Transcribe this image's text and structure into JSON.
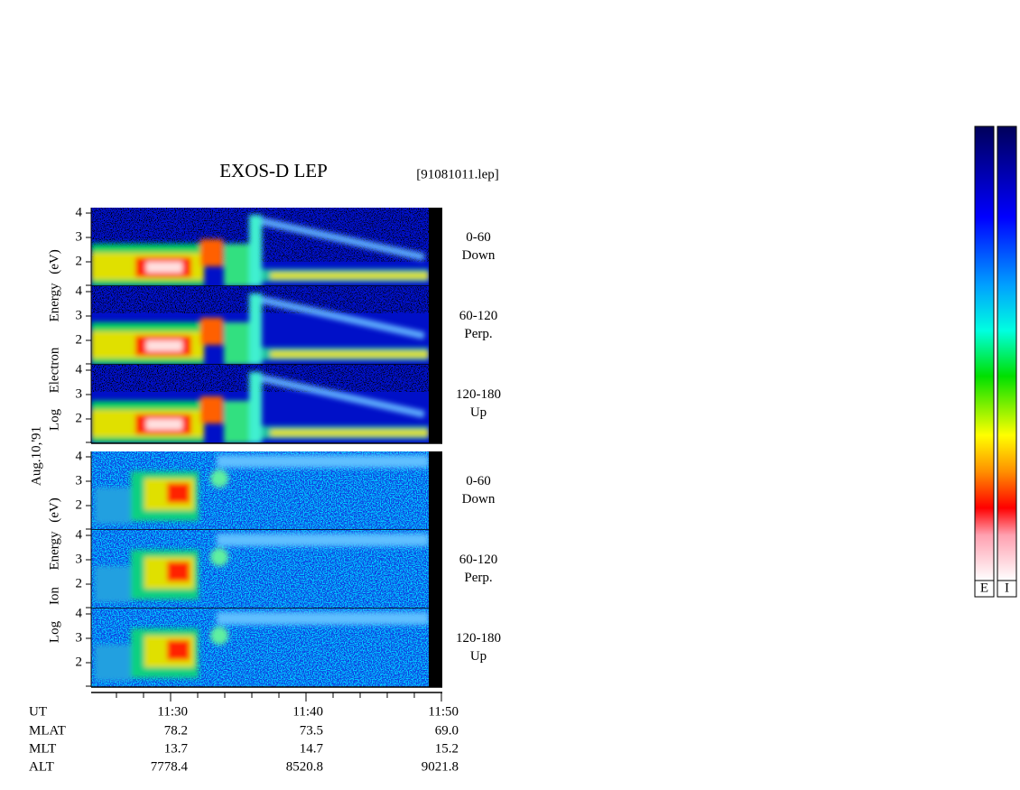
{
  "header": {
    "title": "EXOS-D LEP",
    "file": "[91081011.lep]"
  },
  "date": "Aug.10,'91",
  "yticks": [
    2,
    3,
    4
  ],
  "groups": [
    {
      "label_words": [
        "Log",
        "Electron",
        "Energy",
        "(eV)"
      ]
    },
    {
      "label_words": [
        "Log",
        "Ion",
        "Energy",
        "(eV)"
      ]
    }
  ],
  "panels": [
    {
      "range": "0-60",
      "direction": "Down"
    },
    {
      "range": "60-120",
      "direction": "Perp."
    },
    {
      "range": "120-180",
      "direction": "Up"
    }
  ],
  "time_axis": {
    "label": "UT",
    "ticks": [
      "11:30",
      "11:40",
      "11:50"
    ]
  },
  "ephemeris": [
    {
      "label": "MLAT",
      "values": [
        "78.2",
        "73.5",
        "69.0"
      ]
    },
    {
      "label": "MLT",
      "values": [
        "13.7",
        "14.7",
        "15.2"
      ]
    },
    {
      "label": "ALT",
      "values": [
        "7778.4",
        "8520.8",
        "9021.8"
      ]
    }
  ],
  "colorbar_labels": [
    "E",
    "I"
  ]
}
